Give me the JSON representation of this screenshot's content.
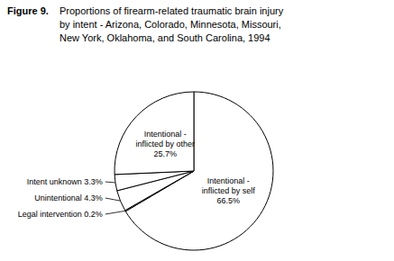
{
  "chart_data": {
    "type": "pie",
    "title": "Figure 9.",
    "subtitle": "Proportions of firearm-related traumatic brain injury\nby intent - Arizona, Colorado, Minnesota, Missouri,\nNew York, Oklahoma, and South Carolina, 1994",
    "categories": [
      "Intentional -\ninflicted by self",
      "Legal intervention",
      "Unintentional",
      "Intent unknown",
      "Intentional -\ninflicted by other"
    ],
    "values": [
      66.5,
      0.2,
      4.3,
      3.3,
      25.7
    ],
    "value_labels": [
      "66.5%",
      "0.2%",
      "4.3%",
      "3.3%",
      "25.7%"
    ],
    "colors": [
      "#ffffff",
      "#ffffff",
      "#ffffff",
      "#ffffff",
      "#ffffff"
    ],
    "data_labels": true
  }
}
